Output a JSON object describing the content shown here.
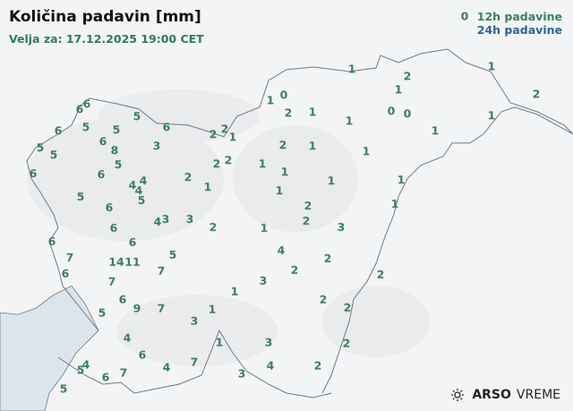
{
  "header": {
    "title": "Količina padavin [mm]",
    "valid": "Velja za: 17.12.2025 19:00 CET"
  },
  "legend": {
    "items": [
      {
        "label": "12h padavine",
        "color": "#3a8060"
      },
      {
        "label": "24h padavine",
        "color": "#2a6596"
      }
    ]
  },
  "label_color": "#3d7c64",
  "sea_color": "#dde5ec",
  "stations": [
    "6",
    "6",
    "5",
    "5",
    "6",
    "5",
    "6",
    "2",
    "2",
    "1",
    "6",
    "8",
    "3",
    "5",
    "5",
    "5",
    "6",
    "6",
    "2",
    "2",
    "2",
    "1",
    "4",
    "4",
    "4",
    "5",
    "5",
    "6",
    "4",
    "3",
    "3",
    "2",
    "6",
    "6",
    "6",
    "7",
    "6",
    "14",
    "11",
    "5",
    "7",
    "7",
    "6",
    "9",
    "7",
    "5",
    "3",
    "1",
    "1",
    "3",
    "2",
    "4",
    "6",
    "4",
    "7",
    "7",
    "6",
    "5",
    "4",
    "5",
    "1",
    "3",
    "4",
    "3",
    "2",
    "2",
    "2",
    "2",
    "2",
    "2",
    "4",
    "1",
    "2",
    "2",
    "3",
    "1",
    "1",
    "1",
    "2",
    "1",
    "1",
    "1",
    "1",
    "1",
    "1",
    "0",
    "2",
    "1",
    "1",
    "1",
    "2",
    "1",
    "0",
    "0",
    "1",
    "1",
    "2",
    "1",
    "0"
  ],
  "logo": {
    "brand": "ARSO",
    "product": "VREME"
  }
}
